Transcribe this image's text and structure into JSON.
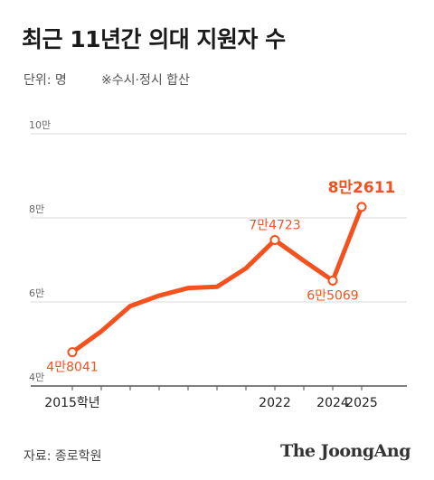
{
  "title": "최근 11년간 의대 지원자 수",
  "unit_label": "단위: 명",
  "note": "※수시·정시 합산",
  "source": "자료: 종로학원",
  "brand": "The JoongAng",
  "colors": {
    "line": "#f4511e",
    "label": "#f4511e",
    "grid": "#d9d9d9",
    "axis": "#555555"
  },
  "chart_data": {
    "type": "line",
    "title": "최근 11년간 의대 지원자 수",
    "xlabel": "",
    "ylabel": "",
    "x": [
      2015,
      2016,
      2017,
      2018,
      2019,
      2020,
      2021,
      2022,
      2023,
      2024,
      2025
    ],
    "x_tick_labels": [
      {
        "x": 2015,
        "label": "2015학년"
      },
      {
        "x": 2022,
        "label": "2022"
      },
      {
        "x": 2024,
        "label": "2024"
      },
      {
        "x": 2025,
        "label": "2025"
      }
    ],
    "series": [
      {
        "values": [
          48041,
          53000,
          59000,
          61500,
          63300,
          63600,
          68000,
          74723,
          69800,
          65069,
          82611
        ]
      }
    ],
    "ylim": [
      40000,
      100000
    ],
    "y_ticks": [
      {
        "value": 40000,
        "label": "4만"
      },
      {
        "value": 60000,
        "label": "6만"
      },
      {
        "value": 80000,
        "label": "8만"
      },
      {
        "value": 100000,
        "label": "10만"
      }
    ],
    "annotations": [
      {
        "x": 2015,
        "value": 48041,
        "label": "4만8041",
        "position": "below"
      },
      {
        "x": 2022,
        "value": 74723,
        "label": "7만4723",
        "position": "above"
      },
      {
        "x": 2024,
        "value": 65069,
        "label": "6만5069",
        "position": "below"
      },
      {
        "x": 2025,
        "value": 82611,
        "label": "8만2611",
        "position": "above",
        "emphasis": true
      }
    ],
    "grid": true,
    "legend": "none"
  }
}
